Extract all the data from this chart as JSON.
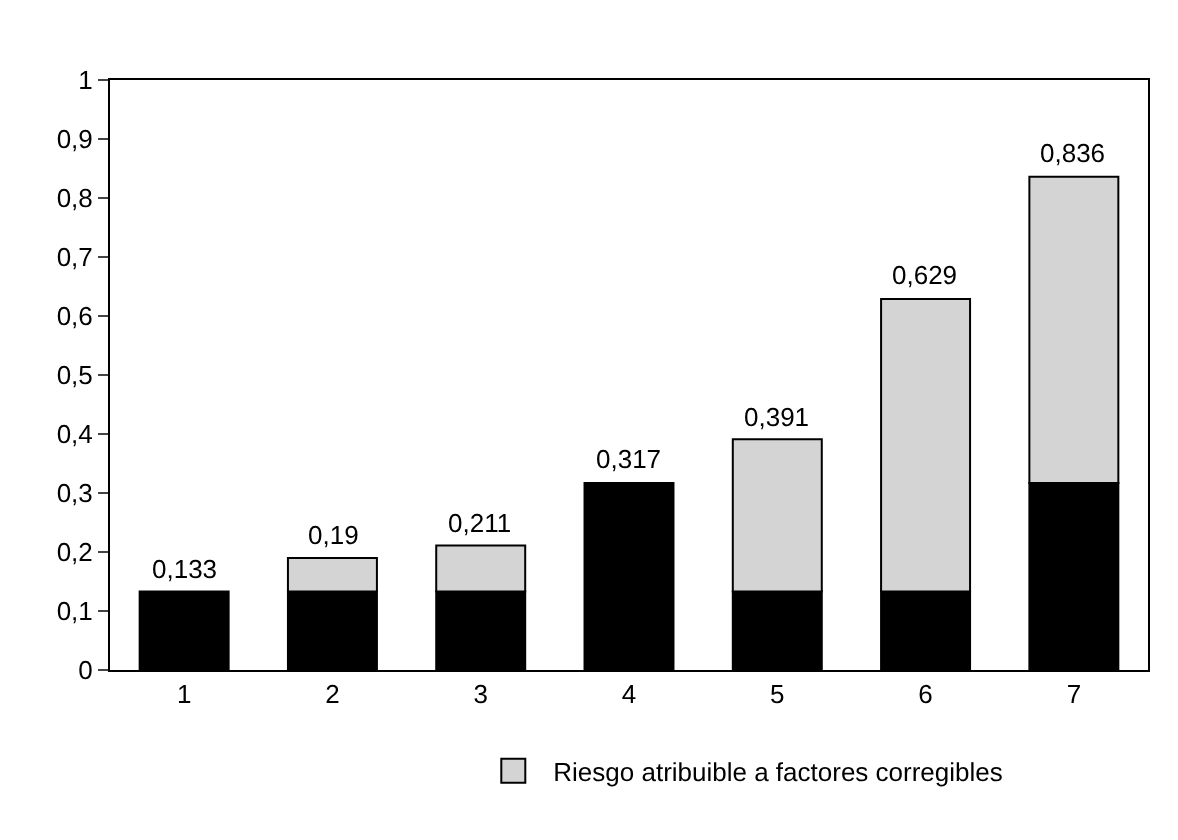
{
  "chart_data": {
    "type": "bar",
    "stacked": true,
    "categories": [
      "1",
      "2",
      "3",
      "4",
      "5",
      "6",
      "7"
    ],
    "series": [
      {
        "color": "#000000",
        "values": [
          0.133,
          0.133,
          0.133,
          0.317,
          0.133,
          0.133,
          0.317
        ]
      },
      {
        "name": "Riesgo atribuible a factores corregibles",
        "color": "#d4d4d4",
        "values": [
          null,
          0.057,
          0.078,
          null,
          0.258,
          0.496,
          0.519
        ]
      }
    ],
    "totals": [
      "0,133",
      "0,19",
      "0,211",
      "0,317",
      "0,391",
      "0,629",
      "0,836"
    ],
    "ylim": [
      0,
      1
    ],
    "yticks": [
      0,
      {
        "value": 0.1,
        "label": "0,1"
      },
      {
        "value": 0.2,
        "label": "0,2"
      },
      {
        "value": 0.3,
        "label": "0,3"
      },
      {
        "value": 0.4,
        "label": "0,4"
      },
      {
        "value": 0.5,
        "label": "0,5"
      },
      {
        "value": 0.6,
        "label": "0,6"
      },
      {
        "value": 0.7,
        "label": "0,7"
      },
      {
        "value": 0.8,
        "label": "0,8"
      },
      {
        "value": 0.9,
        "label": "0,9"
      },
      1
    ],
    "legend": "bottom"
  }
}
